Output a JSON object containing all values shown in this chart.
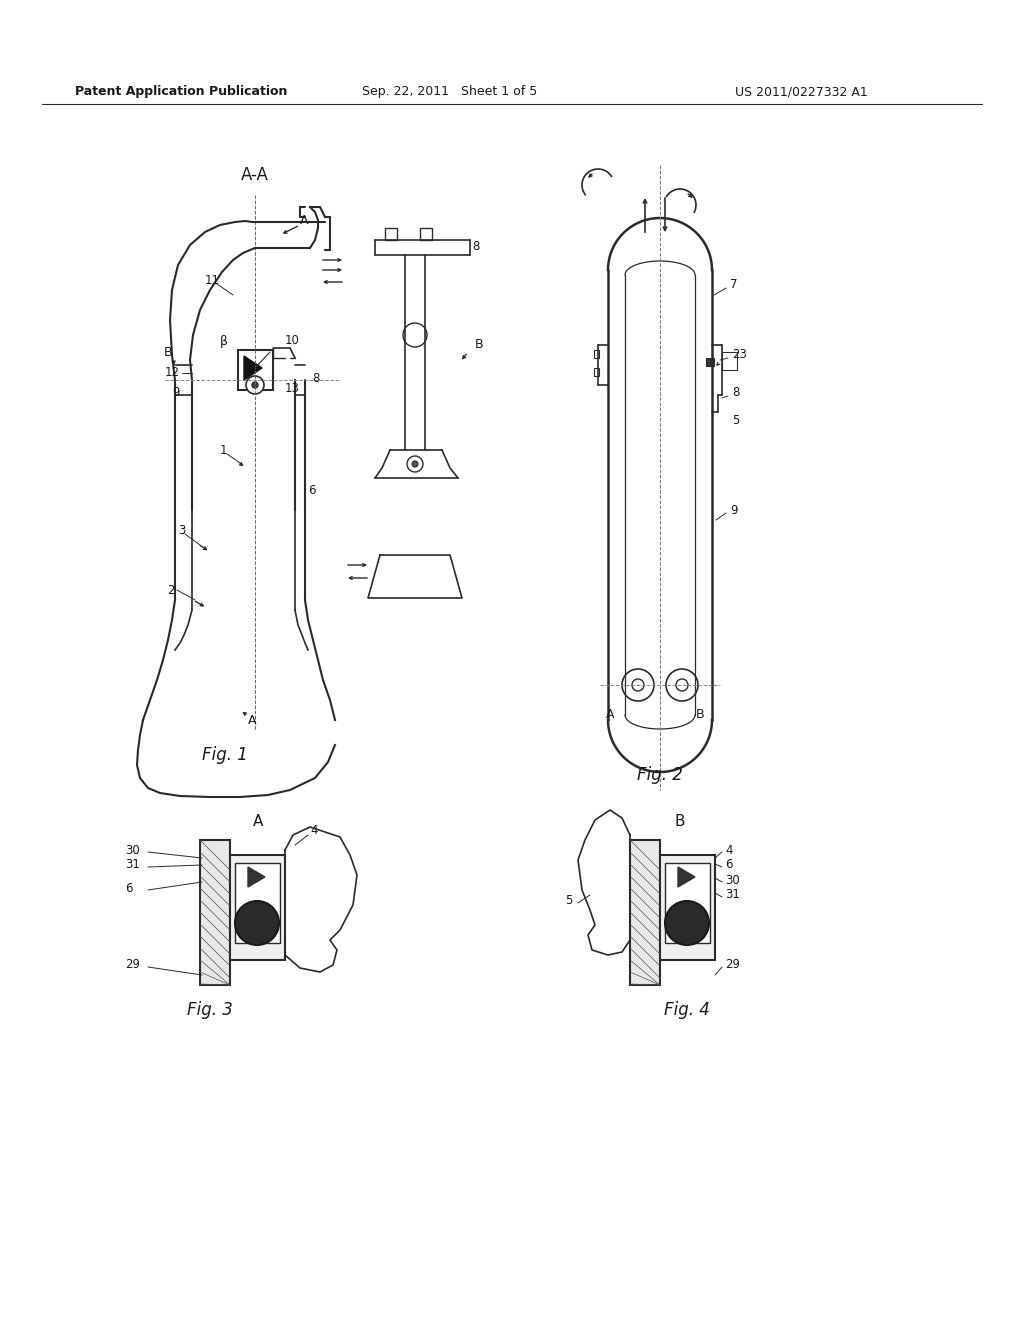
{
  "background_color": "#ffffff",
  "header_left": "Patent Application Publication",
  "header_center": "Sep. 22, 2011   Sheet 1 of 5",
  "header_right": "US 2011/0227332 A1",
  "line_color": "#2a2a2a",
  "text_color": "#1a1a1a"
}
